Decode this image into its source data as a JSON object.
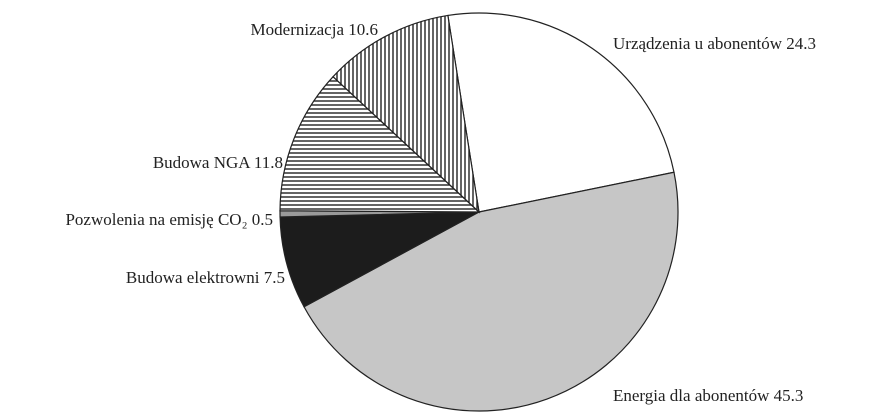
{
  "chart_data": {
    "type": "pie",
    "categories": [
      "Urządzenia u abonentów",
      "Energia dla abonentów",
      "Budowa elektrowni",
      "Pozwolenia na emisję CO₂",
      "Budowa NGA",
      "Modernizacja"
    ],
    "values": [
      24.3,
      45.3,
      7.5,
      0.5,
      11.8,
      10.6
    ],
    "colors": [
      "#ffffff",
      "#c6c6c6",
      "#1c1c1c",
      "#9a9a9a",
      "#ffffff",
      "#ffffff"
    ],
    "hatching": [
      "none",
      "none",
      "none",
      "none",
      "horizontal",
      "vertical"
    ]
  }
}
